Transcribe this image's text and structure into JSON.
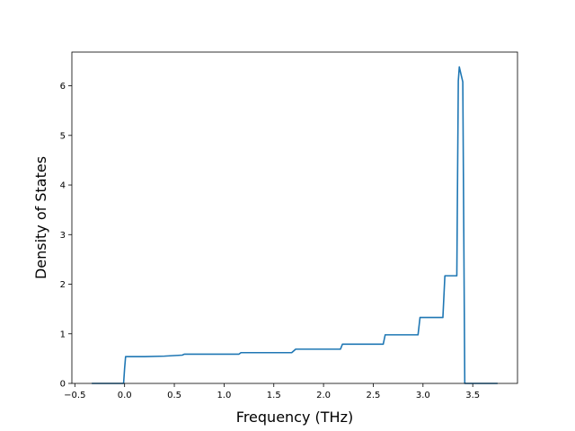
{
  "chart_data": {
    "type": "line",
    "title": "",
    "xlabel": "Frequency (THz)",
    "ylabel": "Density of States",
    "xlim": [
      -0.53,
      3.95
    ],
    "ylim": [
      0,
      6.68
    ],
    "xticks": [
      -0.5,
      0.0,
      0.5,
      1.0,
      1.5,
      2.0,
      2.5,
      3.0,
      3.5
    ],
    "xtick_labels": [
      "−0.5",
      "0.0",
      "0.5",
      "1.0",
      "1.5",
      "2.0",
      "2.5",
      "3.0",
      "3.5"
    ],
    "yticks": [
      0,
      1,
      2,
      3,
      4,
      5,
      6
    ],
    "ytick_labels": [
      "0",
      "1",
      "2",
      "3",
      "4",
      "5",
      "6"
    ],
    "grid": false,
    "legend": "none",
    "series": [
      {
        "color": "#1f77b4",
        "x": [
          -0.33,
          -0.01,
          0.0,
          0.01,
          0.2,
          0.4,
          0.58,
          0.6,
          1.15,
          1.17,
          1.68,
          1.72,
          2.17,
          2.19,
          2.6,
          2.62,
          2.95,
          2.97,
          3.2,
          3.22,
          3.34,
          3.355,
          3.365,
          3.38,
          3.4,
          3.42,
          3.5,
          3.75
        ],
        "y": [
          0.0,
          0.0,
          0.3,
          0.54,
          0.54,
          0.55,
          0.57,
          0.59,
          0.59,
          0.62,
          0.62,
          0.69,
          0.69,
          0.79,
          0.79,
          0.98,
          0.98,
          1.33,
          1.33,
          2.17,
          2.17,
          6.1,
          6.38,
          6.25,
          6.08,
          0.0,
          0.0,
          0.0
        ]
      }
    ]
  }
}
